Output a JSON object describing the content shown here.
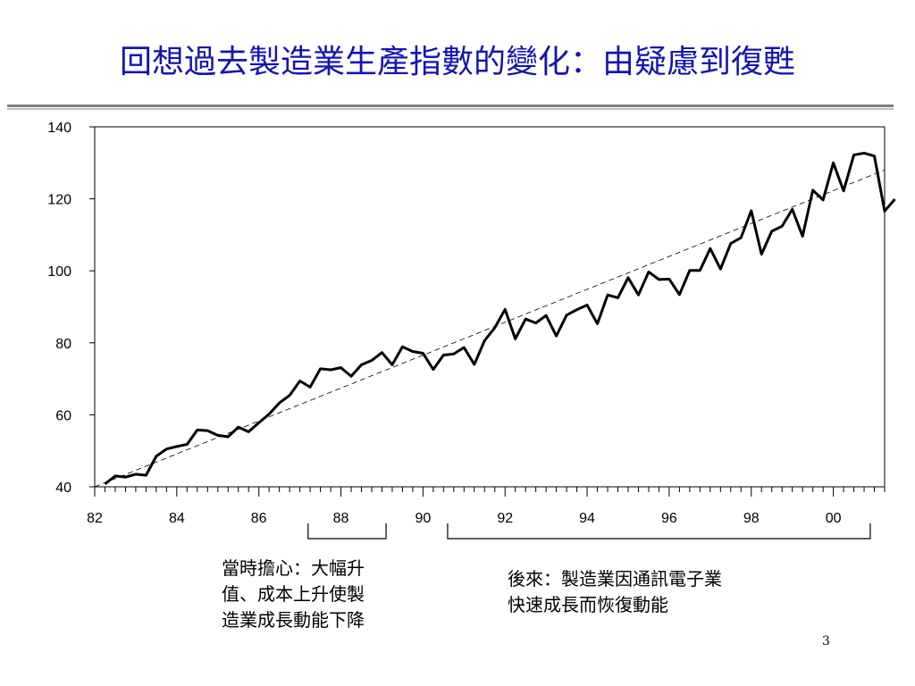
{
  "slide": {
    "title": "回想過去製造業生產指數的變化：由疑慮到復甦",
    "page_number": "3"
  },
  "annotations": {
    "left_lines": [
      "當時擔心：大幅升",
      "值、成本上升使製",
      "造業成長動能下降"
    ],
    "right_lines": [
      "後來：製造業因通訊電子業",
      "快速成長而恢復動能"
    ]
  },
  "chart_data": {
    "type": "line",
    "title": "",
    "xlabel": "",
    "ylabel": "",
    "ylim": [
      40,
      140
    ],
    "yticks": [
      40,
      60,
      80,
      100,
      120,
      140
    ],
    "xlim": [
      1982,
      2001.25
    ],
    "xtick_labels": [
      "82",
      "84",
      "86",
      "88",
      "90",
      "92",
      "94",
      "96",
      "98",
      "00"
    ],
    "grid": false,
    "frequency": "quarterly",
    "start": "1982Q1",
    "series": [
      {
        "style": "solid-thick",
        "values": [
          40.8,
          43.0,
          42.7,
          43.5,
          43.2,
          48.5,
          50.5,
          51.2,
          51.8,
          55.8,
          55.6,
          54.3,
          53.9,
          56.6,
          55.3,
          57.8,
          60.2,
          63.3,
          65.4,
          69.4,
          67.7,
          72.8,
          72.5,
          73.1,
          70.7,
          73.9,
          75.1,
          77.3,
          73.9,
          78.9,
          77.6,
          77.1,
          72.6,
          76.6,
          76.9,
          78.7,
          74.0,
          80.6,
          84.2,
          89.3,
          81.1,
          86.6,
          85.5,
          87.6,
          81.9,
          87.7,
          89.2,
          90.5,
          85.3,
          93.3,
          92.5,
          98.1,
          93.3,
          99.7,
          97.6,
          97.7,
          93.4,
          100.1,
          100.1,
          106.2,
          100.5,
          107.6,
          109.2,
          116.7,
          104.6,
          111.0,
          112.4,
          117.1,
          109.6,
          122.4,
          119.7,
          130.0,
          122.2,
          132.2,
          132.7,
          131.9,
          116.6,
          119.9
        ]
      },
      {
        "style": "dashed-trend",
        "x": [
          1982,
          2001.25
        ],
        "values": [
          40,
          128
        ]
      }
    ],
    "brackets": [
      {
        "from": 1987.2,
        "to": 1989.1,
        "label_ref": "left_lines"
      },
      {
        "from": 1990.6,
        "to": 2000.9,
        "label_ref": "right_lines"
      }
    ]
  }
}
